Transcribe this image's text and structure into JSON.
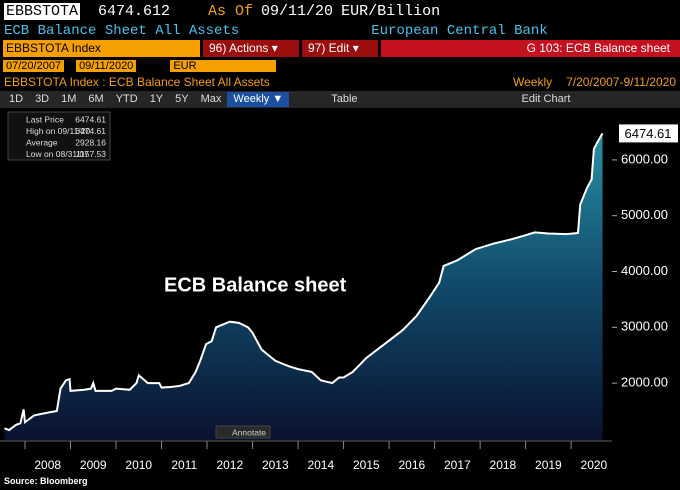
{
  "header": {
    "ticker": "EBBSTOTA",
    "value": 6474.612,
    "as_of_label": "As Of",
    "as_of": "09/11/20",
    "unit": "EUR/Billion",
    "name": "ECB Balance Sheet All Assets",
    "source_org": "European Central Bank"
  },
  "command": {
    "security": "EBBSTOTA Index",
    "actions": "96) Actions ▾",
    "edit": "97) Edit ▾",
    "page": "G 103: ECB Balance sheet"
  },
  "range": {
    "start": "07/20/2007",
    "end": "09/11/2020",
    "currency": "EUR"
  },
  "subtitle": {
    "text": "EBBSTOTA Index : ECB Balance Sheet All Assets",
    "frequency": "Weekly",
    "period": "7/20/2007-9/11/2020"
  },
  "toolbar": {
    "periods": [
      "1D",
      "3D",
      "1M",
      "6M",
      "YTD",
      "1Y",
      "5Y",
      "Max"
    ],
    "frequency": "Weekly ▼",
    "table": "Table",
    "edit_chart": "Edit Chart"
  },
  "chart_data": {
    "type": "area",
    "color": "#ffffff",
    "annotation": "ECB Balance sheet",
    "annotate_button": "Annotate",
    "stats": [
      {
        "label": "Last Price",
        "value": 6474.61
      },
      {
        "label": "High on 09/11/20",
        "value": 6474.61
      },
      {
        "label": "Average",
        "value": 2928.16
      },
      {
        "label": "Low on 08/31/07",
        "value": 1157.53
      }
    ],
    "last_label": 6474.61,
    "x": [
      2007.55,
      2007.65,
      2007.8,
      2007.9,
      2007.97,
      2008.0,
      2008.2,
      2008.5,
      2008.7,
      2008.78,
      2008.9,
      2008.98,
      2009.0,
      2009.3,
      2009.45,
      2009.5,
      2009.55,
      2009.9,
      2010.0,
      2010.3,
      2010.45,
      2010.5,
      2010.7,
      2010.95,
      2011.0,
      2011.2,
      2011.4,
      2011.6,
      2011.75,
      2011.85,
      2011.98,
      2012.1,
      2012.2,
      2012.5,
      2012.7,
      2012.9,
      2013.0,
      2013.2,
      2013.5,
      2013.8,
      2014.0,
      2014.3,
      2014.5,
      2014.75,
      2014.9,
      2015.0,
      2015.2,
      2015.5,
      2015.9,
      2016.3,
      2016.6,
      2016.9,
      2017.1,
      2017.2,
      2017.5,
      2017.9,
      2018.3,
      2018.7,
      2019.0,
      2019.2,
      2019.5,
      2019.9,
      2020.15,
      2020.2,
      2020.35,
      2020.45,
      2020.5,
      2020.6,
      2020.69
    ],
    "values": [
      1190,
      1157.53,
      1250,
      1280,
      1530,
      1300,
      1420,
      1470,
      1500,
      1900,
      2050,
      2070,
      1860,
      1880,
      1900,
      2000,
      1860,
      1860,
      1900,
      1880,
      2000,
      2140,
      2000,
      2000,
      1920,
      1930,
      1950,
      2000,
      2200,
      2400,
      2700,
      2750,
      3000,
      3100,
      3080,
      3000,
      2900,
      2600,
      2400,
      2300,
      2250,
      2200,
      2050,
      2000,
      2100,
      2100,
      2200,
      2450,
      2700,
      2950,
      3200,
      3550,
      3800,
      4100,
      4200,
      4400,
      4500,
      4580,
      4650,
      4700,
      4680,
      4670,
      4690,
      5200,
      5500,
      5650,
      6200,
      6350,
      6474.61
    ],
    "xlim": [
      2007.55,
      2020.7
    ],
    "xticks": [
      2008,
      2009,
      2010,
      2011,
      2012,
      2013,
      2014,
      2015,
      2016,
      2017,
      2018,
      2019,
      2020
    ],
    "ylim": [
      980,
      6930
    ],
    "yticks": [
      {
        "value": 2000,
        "label": "2000.00"
      },
      {
        "value": 3000,
        "label": "3000.00"
      },
      {
        "value": 4000,
        "label": "4000.00"
      },
      {
        "value": 5000,
        "label": "5000.00"
      },
      {
        "value": 6000,
        "label": "6000.00"
      }
    ]
  },
  "source": "Source: Bloomberg"
}
